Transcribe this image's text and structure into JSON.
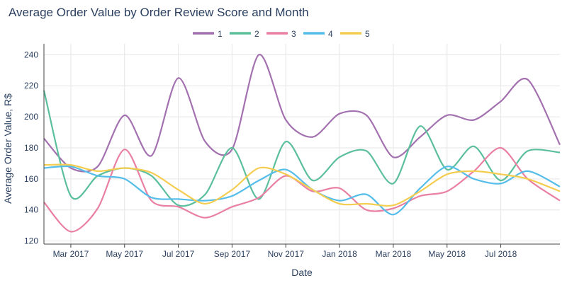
{
  "chart_data": {
    "type": "line",
    "title": "Average Order Value by Order Review Score and Month",
    "xlabel": "Date",
    "ylabel": "Average Order Value, R$",
    "ylim": [
      118,
      247
    ],
    "yticks": [
      120,
      140,
      160,
      180,
      200,
      220,
      240
    ],
    "xlim": [
      0,
      19.2
    ],
    "xticks": [
      {
        "pos": 1,
        "label": "Mar 2017"
      },
      {
        "pos": 3,
        "label": "May 2017"
      },
      {
        "pos": 5,
        "label": "Jul 2017"
      },
      {
        "pos": 7,
        "label": "Sep 2017"
      },
      {
        "pos": 9,
        "label": "Nov 2017"
      },
      {
        "pos": 11,
        "label": "Jan 2018"
      },
      {
        "pos": 13,
        "label": "Mar 2018"
      },
      {
        "pos": 15,
        "label": "May 2018"
      },
      {
        "pos": 17,
        "label": "Jul 2018"
      }
    ],
    "x": [
      0,
      1,
      2,
      3,
      4,
      5,
      6,
      7,
      8,
      9,
      10,
      11,
      12,
      13,
      14,
      15,
      16,
      17,
      18,
      19.2
    ],
    "grid": true,
    "legend_position": "top-center",
    "series": [
      {
        "name": "1",
        "color": "#a371af",
        "values": [
          186,
          167,
          168,
          201,
          175,
          225,
          184,
          179,
          240,
          198,
          187,
          202,
          201,
          174,
          187,
          201,
          198,
          210,
          224,
          182
        ]
      },
      {
        "name": "2",
        "color": "#5cbf9c",
        "values": [
          217,
          149,
          162,
          167,
          162,
          143,
          150,
          180,
          147,
          184,
          159,
          174,
          178,
          157,
          194,
          166,
          181,
          159,
          178,
          177
        ]
      },
      {
        "name": "3",
        "color": "#e97fa2",
        "values": [
          145,
          126,
          141,
          179,
          146,
          142,
          135,
          142,
          148,
          162,
          152,
          154,
          140,
          141,
          149,
          152,
          165,
          180,
          160,
          146
        ]
      },
      {
        "name": "4",
        "color": "#55bde9",
        "values": [
          167,
          168,
          162,
          160,
          148,
          147,
          146,
          149,
          159,
          166,
          153,
          146,
          150,
          137,
          154,
          168,
          160,
          157,
          165,
          155
        ]
      },
      {
        "name": "5",
        "color": "#f4cd50",
        "values": [
          169,
          169,
          165,
          167,
          164,
          153,
          144,
          153,
          167,
          163,
          153,
          144,
          144,
          143,
          152,
          163,
          165,
          163,
          160,
          152
        ]
      }
    ]
  }
}
